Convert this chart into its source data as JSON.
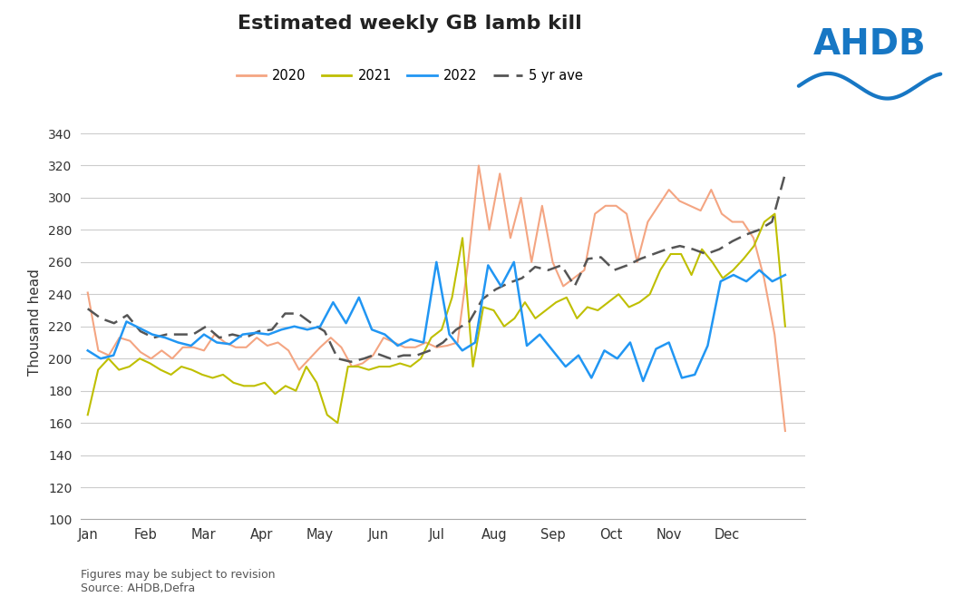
{
  "title": "Estimated weekly GB lamb kill",
  "ylabel": "Thousand head",
  "ylim": [
    100,
    345
  ],
  "yticks": [
    100,
    120,
    140,
    160,
    180,
    200,
    220,
    240,
    260,
    280,
    300,
    320,
    340
  ],
  "x_labels": [
    "Jan",
    "Feb",
    "Mar",
    "Apr",
    "May",
    "Jun",
    "Jul",
    "Aug",
    "Sep",
    "Oct",
    "Nov",
    "Dec"
  ],
  "footer_line1": "Figures may be subject to revision",
  "footer_line2": "Source: AHDB,Defra",
  "color_2020": "#F4A582",
  "color_2021": "#BFBF00",
  "color_2022": "#2196F3",
  "color_5yr": "#555555",
  "series_2020": [
    241,
    205,
    202,
    213,
    211,
    204,
    200,
    205,
    200,
    207,
    207,
    205,
    215,
    210,
    207,
    207,
    213,
    208,
    210,
    205,
    193,
    200,
    207,
    213,
    207,
    195,
    197,
    202,
    213,
    210,
    207,
    207,
    210,
    207,
    208,
    210,
    260,
    320,
    280,
    315,
    275,
    300,
    260,
    295,
    260,
    245,
    250,
    255,
    290,
    295,
    295,
    290,
    260,
    285,
    295,
    305,
    298,
    295,
    292,
    305,
    290,
    285,
    285,
    275,
    250,
    215,
    155
  ],
  "series_2021": [
    165,
    193,
    200,
    193,
    195,
    200,
    197,
    193,
    190,
    195,
    193,
    190,
    188,
    190,
    185,
    183,
    183,
    185,
    178,
    183,
    180,
    195,
    185,
    165,
    160,
    195,
    195,
    193,
    195,
    195,
    197,
    195,
    200,
    213,
    218,
    238,
    275,
    195,
    232,
    230,
    220,
    225,
    235,
    225,
    230,
    235,
    238,
    225,
    232,
    230,
    235,
    240,
    232,
    235,
    240,
    255,
    265,
    265,
    252,
    268,
    260,
    250,
    255,
    262,
    270,
    285,
    290,
    220
  ],
  "series_2022": [
    205,
    200,
    202,
    223,
    219,
    215,
    213,
    210,
    208,
    215,
    210,
    209,
    215,
    216,
    215,
    218,
    220,
    218,
    220,
    235,
    222,
    238,
    218,
    215,
    208,
    212,
    210,
    260,
    215,
    205,
    210,
    258,
    245,
    260,
    208,
    215,
    205,
    195,
    202,
    188,
    205,
    200,
    210,
    186,
    206,
    210,
    188,
    190,
    208,
    248,
    252,
    248,
    255,
    248,
    252
  ],
  "series_5yr": [
    231,
    225,
    222,
    227,
    217,
    213,
    215,
    215,
    215,
    220,
    213,
    215,
    213,
    217,
    218,
    228,
    228,
    222,
    217,
    200,
    198,
    200,
    203,
    200,
    202,
    202,
    205,
    210,
    218,
    223,
    237,
    243,
    247,
    250,
    257,
    255,
    258,
    245,
    262,
    263,
    255,
    258,
    262,
    265,
    268,
    270,
    268,
    265,
    268,
    273,
    277,
    280,
    285,
    315
  ]
}
